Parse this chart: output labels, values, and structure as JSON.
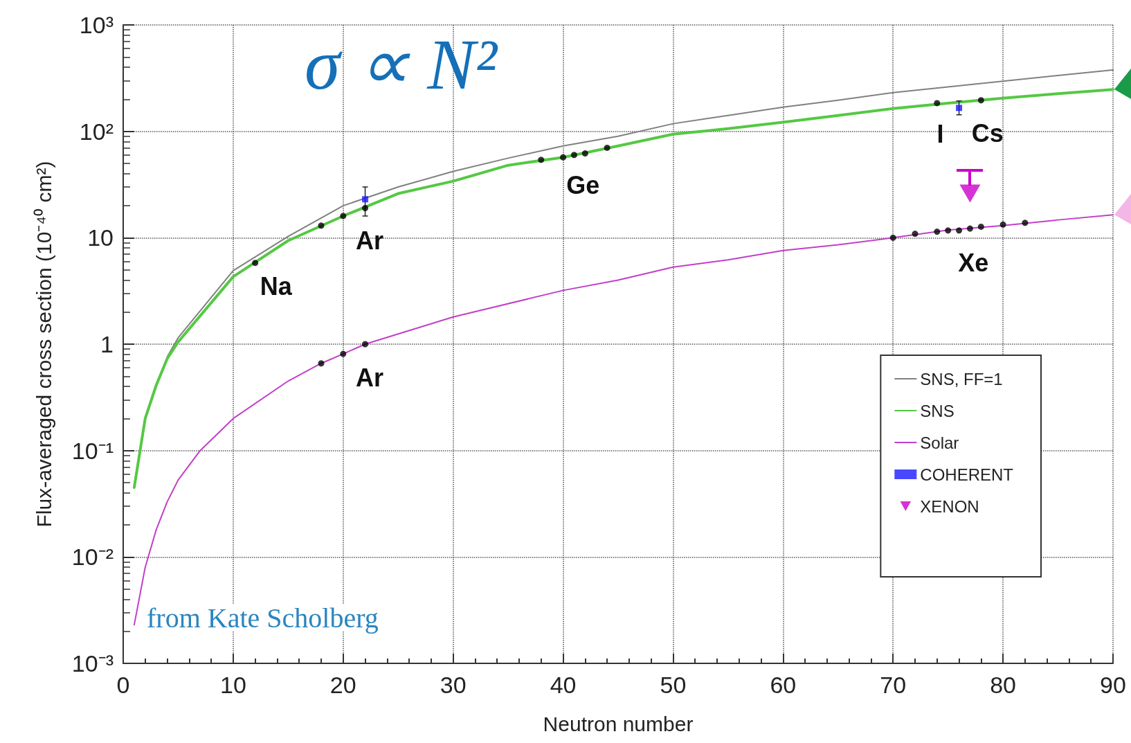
{
  "chart_data": {
    "type": "line",
    "xlabel": "Neutron number",
    "ylabel": "Flux-averaged cross section (10⁻⁴⁰ cm²)",
    "xlim": [
      0,
      90
    ],
    "xticks": [
      0,
      10,
      20,
      30,
      40,
      50,
      60,
      70,
      80,
      90
    ],
    "ylim": [
      0.001,
      1000
    ],
    "yticks": [
      {
        "value": 0.001,
        "label": "10⁻³"
      },
      {
        "value": 0.01,
        "label": "10⁻²"
      },
      {
        "value": 0.1,
        "label": "10⁻¹"
      },
      1,
      10,
      {
        "value": 100,
        "label": "10²"
      },
      {
        "value": 1000,
        "label": "10³"
      }
    ],
    "log": true,
    "grid": true,
    "legend": "bottom right",
    "series": [
      {
        "name": "SNS, FF=1",
        "color": "#808080",
        "marker": "none",
        "x": [
          4,
          5,
          10,
          15,
          20,
          25,
          30,
          35,
          40,
          45,
          50,
          55,
          60,
          65,
          70,
          75,
          80,
          85,
          90
        ],
        "values": [
          0.76,
          1.15,
          4.9,
          10.3,
          20,
          30,
          42,
          56,
          73,
          90,
          118,
          141,
          169,
          196,
          231,
          262,
          296,
          335,
          378
        ]
      },
      {
        "name": "SNS",
        "color": "#55c844",
        "marker": "none",
        "x": [
          1,
          2,
          3,
          4,
          5,
          10,
          15,
          20,
          25,
          30,
          35,
          40,
          45,
          50,
          55,
          60,
          65,
          70,
          75,
          80,
          85,
          90
        ],
        "values": [
          0.045,
          0.2,
          0.41,
          0.73,
          1.05,
          4.3,
          9.4,
          16,
          26,
          34,
          48,
          57,
          73,
          94,
          106,
          122,
          141,
          164,
          184,
          205,
          226,
          247
        ]
      },
      {
        "name": "Solar",
        "color": "#c23fc8",
        "marker": "none",
        "x": [
          1,
          2,
          3,
          4,
          5,
          7,
          10,
          15,
          18,
          20,
          22,
          30,
          40,
          45,
          50,
          55,
          60,
          65,
          70,
          75,
          80,
          85,
          90
        ],
        "values": [
          0.0023,
          0.008,
          0.018,
          0.033,
          0.053,
          0.1,
          0.2,
          0.45,
          0.66,
          0.81,
          1.0,
          1.8,
          3.2,
          4.0,
          5.3,
          6.2,
          7.6,
          8.6,
          10,
          11.8,
          13,
          14.7,
          16.4
        ]
      },
      {
        "type": "scatter",
        "color": "#000000",
        "marker": "circle",
        "x": [
          12,
          18,
          20,
          22,
          38,
          40,
          41,
          42,
          44,
          74,
          78
        ],
        "values": [
          5.8,
          13,
          16,
          19,
          54,
          57,
          60,
          62,
          70,
          184,
          196
        ]
      },
      {
        "type": "scatter",
        "color": "#000000",
        "marker": "circle",
        "x": [
          18,
          20,
          22,
          70,
          72,
          74,
          75,
          76,
          77,
          78,
          80,
          82
        ],
        "values": [
          0.66,
          0.81,
          1.0,
          10,
          10.9,
          11.4,
          11.7,
          11.7,
          12.2,
          12.7,
          13.3,
          13.8
        ]
      },
      {
        "type": "scatter",
        "name": "COHERENT",
        "color": "#1a1aff",
        "marker": "square",
        "x": [
          22,
          76
        ],
        "values": [
          23,
          166
        ],
        "errors": [
          [
            16,
            30
          ],
          [
            143,
            193
          ]
        ]
      },
      {
        "type": "scatter",
        "name": "XENON",
        "color": "#cc00cc",
        "marker": "triangle",
        "x": [
          77
        ],
        "values": [
          26
        ]
      }
    ],
    "annotations": [
      "σ ∝ N²",
      "from Kate Scholberg",
      "Na",
      "Ar",
      "Ge",
      "I",
      "Cs",
      "Ar",
      "Xe"
    ]
  }
}
